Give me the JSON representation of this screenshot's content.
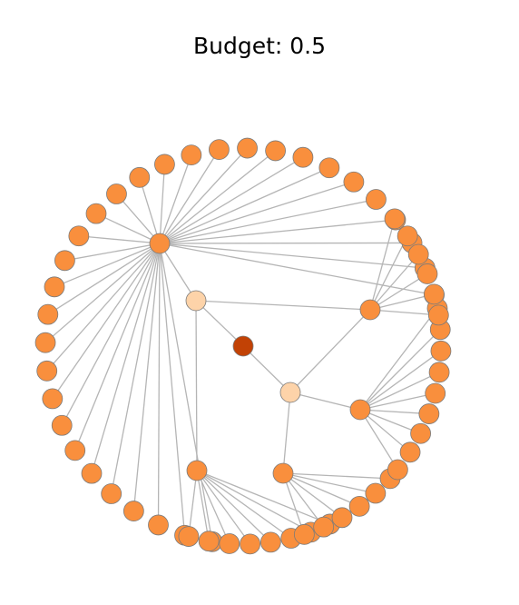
{
  "title": "Budget: 0.5",
  "graph": {
    "colors": {
      "root": "#c24205",
      "level1": "#fdd3a9",
      "leaf": "#f98f3d",
      "node_stroke": "#7b7b7b",
      "edge": "#b5b5b5"
    },
    "root": "root",
    "level1": [
      "A",
      "B"
    ],
    "level2": {
      "A": [
        "hubTop",
        "hubBottom"
      ],
      "B": [
        "hubRight",
        "hubLower"
      ]
    },
    "hubs": [
      "hubTop",
      "hubBottom",
      "hubRight",
      "hubLower",
      "hubMid"
    ],
    "edges_extra": [
      [
        "A",
        "hubRight"
      ],
      [
        "B",
        "hubMid"
      ]
    ],
    "leaf_groups": [
      {
        "hub": "hubTop",
        "count": 31
      },
      {
        "hub": "hubBottom",
        "count": 8
      },
      {
        "hub": "hubMid",
        "count": 6
      },
      {
        "hub": "hubLower",
        "count": 9
      },
      {
        "hub": "hubRight",
        "count": 6
      }
    ]
  }
}
